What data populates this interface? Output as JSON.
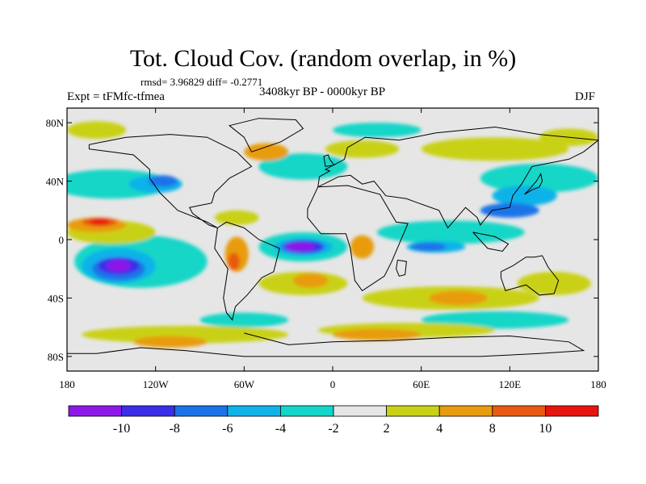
{
  "header": {
    "title": "Tot. Cloud Cov. (random overlap, in %)",
    "stats": "rmsd= 3.96829 diff= -0.2771",
    "expt": "Expt = tFMfc-tfmea",
    "period": "3408kyr BP - 0000kyr BP",
    "season": "DJF"
  },
  "map": {
    "lon_range": [
      -180,
      180
    ],
    "lat_range": [
      -90,
      90
    ],
    "lon_ticks": [
      {
        "value": -180,
        "label": "180"
      },
      {
        "value": -120,
        "label": "120W"
      },
      {
        "value": -60,
        "label": "60W"
      },
      {
        "value": 0,
        "label": "0"
      },
      {
        "value": 60,
        "label": "60E"
      },
      {
        "value": 120,
        "label": "120E"
      },
      {
        "value": 180,
        "label": "180"
      }
    ],
    "lat_ticks": [
      {
        "value": 80,
        "label": "80N"
      },
      {
        "value": 40,
        "label": "40N"
      },
      {
        "value": 0,
        "label": "0"
      },
      {
        "value": -40,
        "label": "40S"
      },
      {
        "value": -80,
        "label": "80S"
      }
    ],
    "background_color": "#e6e6e6",
    "regions": [
      {
        "level": "-4..-2",
        "color": "#12d6c7",
        "lon": -150,
        "lat": 38,
        "rlon": 40,
        "rlat": 10
      },
      {
        "level": "-4..-2",
        "color": "#12d6c7",
        "lon": -20,
        "lat": 50,
        "rlon": 30,
        "rlat": 9
      },
      {
        "level": "-4..-2",
        "color": "#12d6c7",
        "lon": 140,
        "lat": 42,
        "rlon": 40,
        "rlat": 10
      },
      {
        "level": "-4..-2",
        "color": "#12d6c7",
        "lon": 80,
        "lat": 5,
        "rlon": 50,
        "rlat": 8
      },
      {
        "level": "-4..-2",
        "color": "#12d6c7",
        "lon": -130,
        "lat": -15,
        "rlon": 45,
        "rlat": 18
      },
      {
        "level": "-4..-2",
        "color": "#12d6c7",
        "lon": -20,
        "lat": -5,
        "rlon": 30,
        "rlat": 10
      },
      {
        "level": "-4..-2",
        "color": "#12d6c7",
        "lon": 30,
        "lat": 75,
        "rlon": 30,
        "rlat": 5
      },
      {
        "level": "-4..-2",
        "color": "#12d6c7",
        "lon": 110,
        "lat": -55,
        "rlon": 50,
        "rlat": 6
      },
      {
        "level": "-4..-2",
        "color": "#12d6c7",
        "lon": -60,
        "lat": -55,
        "rlon": 30,
        "rlat": 5
      },
      {
        "level": "-6..-4",
        "color": "#0fb3e8",
        "lon": -145,
        "lat": -18,
        "rlon": 25,
        "rlat": 12
      },
      {
        "level": "-6..-4",
        "color": "#0fb3e8",
        "lon": -120,
        "lat": 38,
        "rlon": 18,
        "rlat": 6
      },
      {
        "level": "-6..-4",
        "color": "#0fb3e8",
        "lon": 130,
        "lat": 30,
        "rlon": 22,
        "rlat": 7
      },
      {
        "level": "-6..-4",
        "color": "#0fb3e8",
        "lon": -20,
        "lat": -5,
        "rlon": 20,
        "rlat": 6
      },
      {
        "level": "-6..-4",
        "color": "#0fb3e8",
        "lon": 70,
        "lat": -5,
        "rlon": 20,
        "rlat": 4
      },
      {
        "level": "-8..-6",
        "color": "#1a73e8",
        "lon": 120,
        "lat": 20,
        "rlon": 20,
        "rlat": 5
      },
      {
        "level": "-8..-6",
        "color": "#1a73e8",
        "lon": -145,
        "lat": -20,
        "rlon": 18,
        "rlat": 8
      },
      {
        "level": "-8..-6",
        "color": "#1a73e8",
        "lon": -20,
        "lat": -5,
        "rlon": 15,
        "rlat": 5
      },
      {
        "level": "-8..-6",
        "color": "#1a73e8",
        "lon": -115,
        "lat": 40,
        "rlon": 10,
        "rlat": 4
      },
      {
        "level": "-8..-6",
        "color": "#1a73e8",
        "lon": 65,
        "lat": -5,
        "rlon": 12,
        "rlat": 3
      },
      {
        "level": "-10..-8",
        "color": "#3a2ee8",
        "lon": -145,
        "lat": -18,
        "rlon": 14,
        "rlat": 6
      },
      {
        "level": "-10..-8",
        "color": "#3a2ee8",
        "lon": -20,
        "lat": -5,
        "rlon": 13,
        "rlat": 4
      },
      {
        "level": "<-10",
        "color": "#8c19e8",
        "lon": -145,
        "lat": -18,
        "rlon": 8,
        "rlat": 4
      },
      {
        "level": "<-10",
        "color": "#8c19e8",
        "lon": -22,
        "lat": -5,
        "rlon": 10,
        "rlat": 3
      },
      {
        "level": "2..4",
        "color": "#c9d116",
        "lon": -150,
        "lat": 5,
        "rlon": 30,
        "rlat": 8
      },
      {
        "level": "2..4",
        "color": "#c9d116",
        "lon": 20,
        "lat": 62,
        "rlon": 25,
        "rlat": 6
      },
      {
        "level": "2..4",
        "color": "#c9d116",
        "lon": 110,
        "lat": 62,
        "rlon": 50,
        "rlat": 8
      },
      {
        "level": "2..4",
        "color": "#c9d116",
        "lon": -20,
        "lat": -30,
        "rlon": 30,
        "rlat": 8
      },
      {
        "level": "2..4",
        "color": "#c9d116",
        "lon": 80,
        "lat": -40,
        "rlon": 60,
        "rlat": 8
      },
      {
        "level": "2..4",
        "color": "#c9d116",
        "lon": -100,
        "lat": -65,
        "rlon": 70,
        "rlat": 6
      },
      {
        "level": "2..4",
        "color": "#c9d116",
        "lon": 50,
        "lat": -62,
        "rlon": 60,
        "rlat": 5
      },
      {
        "level": "2..4",
        "color": "#c9d116",
        "lon": -160,
        "lat": 75,
        "rlon": 20,
        "rlat": 6
      },
      {
        "level": "2..4",
        "color": "#c9d116",
        "lon": 160,
        "lat": 70,
        "rlon": 20,
        "rlat": 6
      },
      {
        "level": "2..4",
        "color": "#c9d116",
        "lon": 150,
        "lat": -30,
        "rlon": 25,
        "rlat": 8
      },
      {
        "level": "2..4",
        "color": "#c9d116",
        "lon": -65,
        "lat": 15,
        "rlon": 15,
        "rlat": 5
      },
      {
        "level": "4..8",
        "color": "#e89c0f",
        "lon": -160,
        "lat": 10,
        "rlon": 20,
        "rlat": 5
      },
      {
        "level": "4..8",
        "color": "#e89c0f",
        "lon": -65,
        "lat": -10,
        "rlon": 8,
        "rlat": 12
      },
      {
        "level": "4..8",
        "color": "#e89c0f",
        "lon": 20,
        "lat": -5,
        "rlon": 8,
        "rlat": 8
      },
      {
        "level": "4..8",
        "color": "#e89c0f",
        "lon": -110,
        "lat": -70,
        "rlon": 25,
        "rlat": 4
      },
      {
        "level": "4..8",
        "color": "#e89c0f",
        "lon": 30,
        "lat": -65,
        "rlon": 30,
        "rlat": 4
      },
      {
        "level": "4..8",
        "color": "#e89c0f",
        "lon": -45,
        "lat": 60,
        "rlon": 15,
        "rlat": 6
      },
      {
        "level": "4..8",
        "color": "#e89c0f",
        "lon": 85,
        "lat": -40,
        "rlon": 20,
        "rlat": 5
      },
      {
        "level": "4..8",
        "color": "#e89c0f",
        "lon": -15,
        "lat": -28,
        "rlon": 12,
        "rlat": 5
      },
      {
        "level": "8..10",
        "color": "#e85a0f",
        "lon": -158,
        "lat": 12,
        "rlon": 12,
        "rlat": 3
      },
      {
        "level": "8..10",
        "color": "#e85a0f",
        "lon": -67,
        "lat": -15,
        "rlon": 4,
        "rlat": 6
      },
      {
        "level": ">10",
        "color": "#e8140f",
        "lon": -158,
        "lat": 12,
        "rlon": 7,
        "rlat": 2
      }
    ],
    "land_outlines": [
      [
        [
          -165,
          65
        ],
        [
          -140,
          70
        ],
        [
          -110,
          72
        ],
        [
          -85,
          70
        ],
        [
          -65,
          60
        ],
        [
          -55,
          50
        ],
        [
          -70,
          42
        ],
        [
          -80,
          32
        ],
        [
          -82,
          25
        ],
        [
          -97,
          22
        ],
        [
          -95,
          18
        ],
        [
          -84,
          10
        ],
        [
          -78,
          8
        ],
        [
          -85,
          12
        ],
        [
          -105,
          20
        ],
        [
          -117,
          32
        ],
        [
          -124,
          42
        ],
        [
          -124,
          48
        ],
        [
          -135,
          58
        ],
        [
          -150,
          60
        ],
        [
          -165,
          62
        ],
        [
          -165,
          65
        ]
      ],
      [
        [
          -78,
          8
        ],
        [
          -72,
          12
        ],
        [
          -60,
          8
        ],
        [
          -50,
          0
        ],
        [
          -36,
          -6
        ],
        [
          -40,
          -22
        ],
        [
          -48,
          -26
        ],
        [
          -58,
          -38
        ],
        [
          -66,
          -46
        ],
        [
          -68,
          -55
        ],
        [
          -72,
          -50
        ],
        [
          -74,
          -40
        ],
        [
          -71,
          -20
        ],
        [
          -80,
          -6
        ],
        [
          -78,
          8
        ]
      ],
      [
        [
          -55,
          60
        ],
        [
          -35,
          67
        ],
        [
          -20,
          76
        ],
        [
          -25,
          82
        ],
        [
          -50,
          83
        ],
        [
          -70,
          78
        ],
        [
          -60,
          70
        ],
        [
          -55,
          60
        ]
      ],
      [
        [
          -10,
          36
        ],
        [
          10,
          37
        ],
        [
          32,
          31
        ],
        [
          43,
          12
        ],
        [
          51,
          11
        ],
        [
          40,
          -15
        ],
        [
          35,
          -25
        ],
        [
          20,
          -35
        ],
        [
          15,
          -28
        ],
        [
          12,
          -6
        ],
        [
          9,
          4
        ],
        [
          -8,
          4
        ],
        [
          -17,
          15
        ],
        [
          -17,
          21
        ],
        [
          -10,
          36
        ]
      ],
      [
        [
          -10,
          36
        ],
        [
          -9,
          43
        ],
        [
          -2,
          47
        ],
        [
          -5,
          48
        ],
        [
          8,
          55
        ],
        [
          10,
          63
        ],
        [
          22,
          70
        ],
        [
          45,
          68
        ],
        [
          70,
          73
        ],
        [
          110,
          77
        ],
        [
          140,
          72
        ],
        [
          180,
          68
        ],
        [
          170,
          60
        ],
        [
          160,
          55
        ],
        [
          135,
          50
        ],
        [
          128,
          38
        ],
        [
          122,
          30
        ],
        [
          120,
          22
        ],
        [
          108,
          20
        ],
        [
          100,
          10
        ],
        [
          98,
          15
        ],
        [
          90,
          22
        ],
        [
          78,
          8
        ],
        [
          72,
          20
        ],
        [
          58,
          25
        ],
        [
          50,
          28
        ],
        [
          36,
          30
        ],
        [
          28,
          40
        ],
        [
          20,
          38
        ],
        [
          12,
          44
        ],
        [
          4,
          43
        ],
        [
          -10,
          36
        ]
      ],
      [
        [
          114,
          -22
        ],
        [
          122,
          -18
        ],
        [
          131,
          -12
        ],
        [
          137,
          -12
        ],
        [
          142,
          -11
        ],
        [
          146,
          -19
        ],
        [
          153,
          -28
        ],
        [
          150,
          -37
        ],
        [
          140,
          -38
        ],
        [
          131,
          -31
        ],
        [
          117,
          -35
        ],
        [
          114,
          -26
        ],
        [
          114,
          -22
        ]
      ],
      [
        [
          -60,
          -64
        ],
        [
          -30,
          -72
        ],
        [
          0,
          -70
        ],
        [
          40,
          -69
        ],
        [
          80,
          -67
        ],
        [
          120,
          -66
        ],
        [
          160,
          -70
        ],
        [
          170,
          -76
        ],
        [
          140,
          -78
        ],
        [
          100,
          -80
        ],
        [
          60,
          -80
        ],
        [
          0,
          -80
        ],
        [
          -60,
          -80
        ],
        [
          -100,
          -76
        ],
        [
          -130,
          -74
        ],
        [
          -160,
          -78
        ],
        [
          -180,
          -78
        ]
      ],
      [
        [
          -5,
          50
        ],
        [
          1,
          51
        ],
        [
          -2,
          55
        ],
        [
          -3,
          58
        ],
        [
          -6,
          57
        ],
        [
          -5,
          50
        ]
      ],
      [
        [
          130,
          31
        ],
        [
          135,
          34
        ],
        [
          140,
          36
        ],
        [
          142,
          40
        ],
        [
          141,
          45
        ],
        [
          138,
          40
        ],
        [
          133,
          34
        ],
        [
          130,
          31
        ]
      ],
      [
        [
          95,
          5
        ],
        [
          105,
          -6
        ],
        [
          115,
          -8
        ],
        [
          119,
          -3
        ],
        [
          110,
          2
        ],
        [
          100,
          4
        ],
        [
          95,
          5
        ]
      ],
      [
        [
          44,
          -14
        ],
        [
          50,
          -15
        ],
        [
          49,
          -24
        ],
        [
          45,
          -25
        ],
        [
          43,
          -20
        ],
        [
          44,
          -14
        ]
      ]
    ]
  },
  "colorbar": {
    "colors": [
      "#8c19e8",
      "#3a2ee8",
      "#1a73e8",
      "#0fb3e8",
      "#12d6c7",
      "#e6e6e6",
      "#c9d116",
      "#e89c0f",
      "#e85a0f",
      "#e8140f"
    ],
    "labels": [
      "-10",
      "-8",
      "-6",
      "-4",
      "-2",
      "2",
      "4",
      "8",
      "10"
    ]
  }
}
